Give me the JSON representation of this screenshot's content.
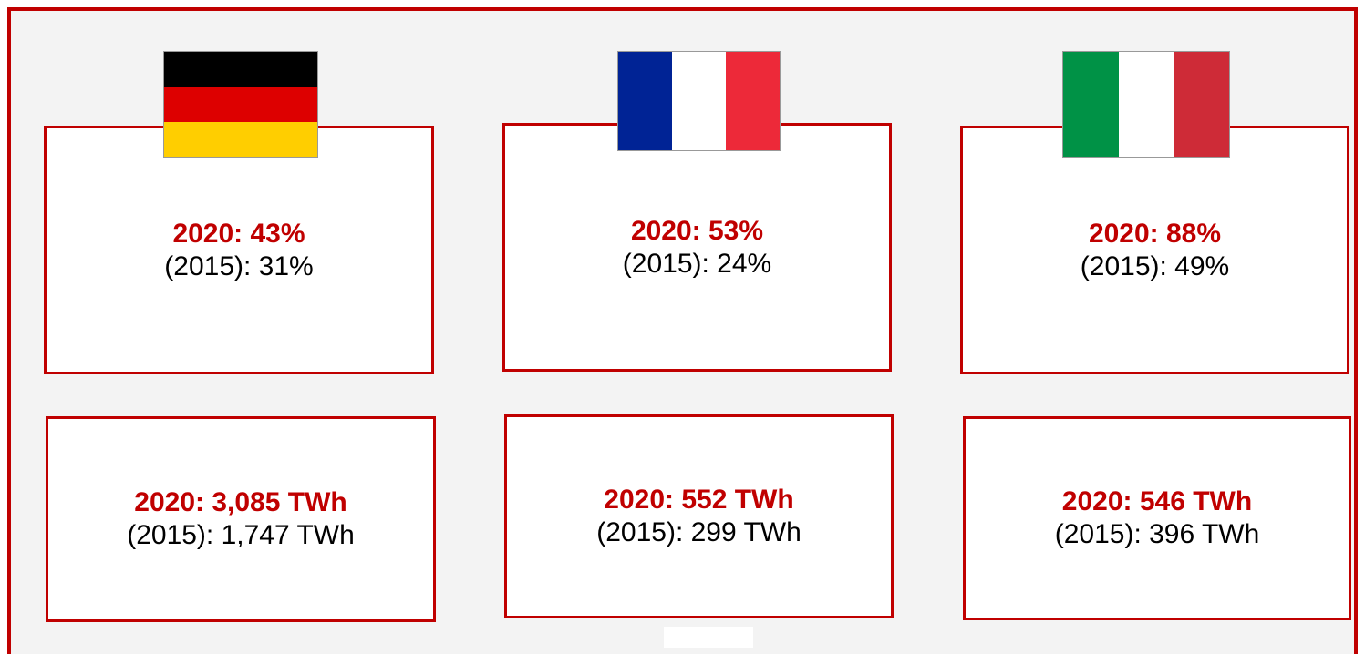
{
  "cards": [
    {
      "share_2020": "2020: 43%",
      "share_2015": "(2015): 31%",
      "generation_2020": "2020: 3,085 TWh",
      "generation_2015": "(2015): 1,747 TWh"
    },
    {
      "share_2020": "2020: 53%",
      "share_2015": "(2015): 24%",
      "generation_2020": "2020: 552 TWh",
      "generation_2015": "(2015): 299 TWh"
    },
    {
      "share_2020": "2020: 88%",
      "share_2015": "(2015): 49%",
      "generation_2020": "2020: 546 TWh",
      "generation_2015": "(2015): 396 TWh"
    }
  ]
}
